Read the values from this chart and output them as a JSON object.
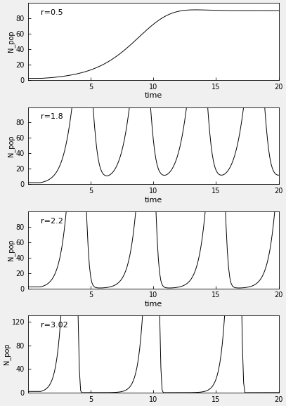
{
  "panels": [
    {
      "r": 0.5,
      "label": "r=0.5",
      "ylim": [
        0,
        100
      ],
      "yticks": [
        0,
        20,
        40,
        60,
        80
      ]
    },
    {
      "r": 1.8,
      "label": "r=1.8",
      "ylim": [
        0,
        100
      ],
      "yticks": [
        0,
        20,
        40,
        60,
        80
      ]
    },
    {
      "r": 2.2,
      "label": "r=2.2",
      "ylim": [
        0,
        100
      ],
      "yticks": [
        0,
        20,
        40,
        60,
        80
      ]
    },
    {
      "r": 3.02,
      "label": "r=3.02",
      "ylim": [
        0,
        130
      ],
      "yticks": [
        0,
        40,
        80,
        120
      ]
    }
  ],
  "K": 90,
  "N0": 2,
  "t_max": 20,
  "steps_per_unit": 10,
  "xticks": [
    5,
    10,
    15,
    20
  ],
  "xlabel": "time",
  "ylabel": "N_pop",
  "line_color": "#000000",
  "bg_color": "#ffffff",
  "figure_bg": "#f0f0f0"
}
